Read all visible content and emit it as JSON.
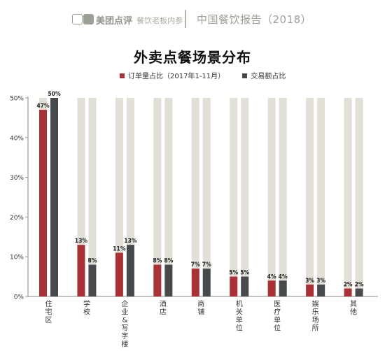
{
  "header": {
    "brand": "美团点评",
    "slogan": "餐饮老板内参",
    "report": "中国餐饮报告（2018）"
  },
  "colors": {
    "order": "#a83236",
    "trade": "#474a4d",
    "track": "#e2dfd6",
    "brand_gray": "#9aa094"
  },
  "chart_data": {
    "type": "bar",
    "title": "外卖点餐场景分布",
    "categories": [
      "住宅区",
      "学校",
      "企业&写字楼",
      "酒店",
      "商铺",
      "机关单位",
      "医疗单位",
      "娱乐场所",
      "其他"
    ],
    "series": [
      {
        "name": "订单量占比（2017年1-11月）",
        "values": [
          47,
          13,
          11,
          8,
          7,
          5,
          4,
          3,
          2
        ]
      },
      {
        "name": "交易额占比",
        "values": [
          50,
          8,
          13,
          8,
          7,
          5,
          4,
          3,
          2
        ]
      }
    ],
    "ylim": [
      0,
      50
    ],
    "yticks": [
      "0%",
      "10%",
      "20%",
      "30%",
      "40%",
      "50%"
    ],
    "legend_position": "top-center"
  }
}
